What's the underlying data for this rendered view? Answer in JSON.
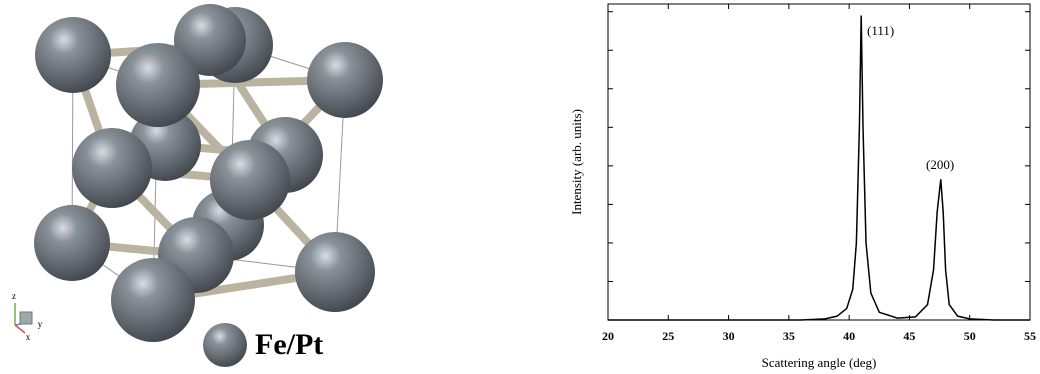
{
  "structure": {
    "legend": "Fe/Pt",
    "axes": [
      "z",
      "x",
      "y"
    ]
  },
  "chart_data": {
    "type": "line",
    "xlabel": "Scattering angle (deg)",
    "ylabel": "Intensity (arb. units)",
    "x": [
      20,
      30,
      36,
      38,
      39,
      39.8,
      40.3,
      40.6,
      40.85,
      41.0,
      41.15,
      41.4,
      41.8,
      42.5,
      44,
      45.5,
      46.5,
      47,
      47.3,
      47.6,
      47.8,
      48.0,
      48.3,
      49,
      50,
      52,
      55
    ],
    "values": [
      0,
      0,
      0,
      0.03,
      0.1,
      0.3,
      0.8,
      2,
      5,
      7.9,
      5,
      2,
      0.7,
      0.2,
      0.05,
      0.08,
      0.4,
      1.3,
      2.8,
      3.65,
      2.8,
      1.3,
      0.4,
      0.1,
      0.03,
      0,
      0
    ],
    "color": "#000000",
    "annotations": [
      "(111)",
      "(200)"
    ],
    "xlim": [
      20,
      55
    ],
    "xticks": [
      20,
      25,
      30,
      35,
      40,
      45,
      50,
      55
    ],
    "ylim": [
      0,
      8.2
    ],
    "yticks": [
      1,
      2,
      3,
      4,
      5,
      6,
      7,
      8
    ],
    "ytick_labels": false,
    "grid": false
  }
}
